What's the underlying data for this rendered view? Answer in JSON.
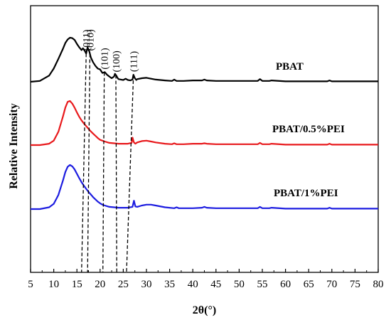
{
  "chart_data": {
    "type": "line",
    "title": "",
    "xlabel": "2θ(°)",
    "ylabel": "Relative Intensity",
    "xlim": [
      5,
      80
    ],
    "x_ticks": [
      5,
      10,
      15,
      20,
      25,
      30,
      35,
      40,
      45,
      50,
      55,
      60,
      65,
      70,
      75,
      80
    ],
    "y_ticks_visible": false,
    "grid": false,
    "legend": "inline labels at right of each curve",
    "series": [
      {
        "name": "PBAT",
        "color": "#000000",
        "offset": 2.0,
        "x": [
          5,
          7,
          9,
          10,
          11,
          12,
          12.5,
          13,
          13.5,
          14,
          14.5,
          15,
          15.5,
          16,
          16.3,
          16.7,
          17,
          17.3,
          17.7,
          18,
          18.5,
          19,
          19.5,
          20,
          20.5,
          21,
          21.5,
          22,
          22.5,
          23,
          23.2,
          23.5,
          23.8,
          24,
          24.5,
          25,
          25.5,
          26,
          26.5,
          27,
          27.2,
          27.5,
          27.8,
          28,
          29,
          30,
          31,
          32,
          34,
          35.5,
          36,
          36.5,
          38,
          40,
          42,
          42.5,
          43,
          45,
          50,
          54,
          54.5,
          55,
          56.5,
          57,
          60,
          65,
          69,
          69.5,
          70,
          75,
          80
        ],
        "y": [
          0.0,
          0.02,
          0.14,
          0.3,
          0.52,
          0.75,
          0.88,
          0.96,
          1.0,
          0.99,
          0.95,
          0.86,
          0.78,
          0.72,
          0.76,
          0.7,
          0.64,
          0.78,
          0.68,
          0.55,
          0.44,
          0.36,
          0.3,
          0.28,
          0.2,
          0.22,
          0.16,
          0.12,
          0.08,
          0.12,
          0.18,
          0.14,
          0.08,
          0.06,
          0.05,
          0.04,
          0.07,
          0.04,
          0.03,
          0.05,
          0.16,
          0.08,
          0.04,
          0.06,
          0.08,
          0.09,
          0.07,
          0.05,
          0.03,
          0.02,
          0.05,
          0.02,
          0.02,
          0.03,
          0.03,
          0.05,
          0.03,
          0.02,
          0.02,
          0.02,
          0.06,
          0.02,
          0.02,
          0.03,
          0.01,
          0.01,
          0.01,
          0.03,
          0.01,
          0.01,
          0.01
        ]
      },
      {
        "name": "PBAT/0.5%PEI",
        "color": "#e8191c",
        "offset": 1.0,
        "x": [
          5,
          7,
          9,
          10,
          11,
          12,
          12.5,
          13,
          13.5,
          14,
          14.5,
          15,
          15.5,
          16,
          16.5,
          17,
          17.5,
          18,
          18.5,
          19,
          19.5,
          20,
          20.5,
          21,
          22,
          23,
          24,
          25,
          26,
          26.8,
          27,
          27.3,
          27.6,
          28,
          29,
          30,
          31,
          32,
          34,
          35.5,
          36,
          36.5,
          38,
          40,
          42,
          42.5,
          43,
          45,
          50,
          54,
          54.5,
          55,
          56.5,
          57,
          60,
          65,
          69,
          69.5,
          70,
          75,
          80
        ],
        "y": [
          0.0,
          0.0,
          0.03,
          0.1,
          0.3,
          0.65,
          0.85,
          0.98,
          1.0,
          0.94,
          0.85,
          0.74,
          0.64,
          0.56,
          0.49,
          0.43,
          0.37,
          0.31,
          0.26,
          0.21,
          0.16,
          0.12,
          0.1,
          0.08,
          0.05,
          0.04,
          0.03,
          0.03,
          0.03,
          0.05,
          0.17,
          0.06,
          0.03,
          0.06,
          0.09,
          0.1,
          0.08,
          0.06,
          0.03,
          0.02,
          0.04,
          0.02,
          0.02,
          0.03,
          0.03,
          0.04,
          0.03,
          0.02,
          0.02,
          0.02,
          0.05,
          0.02,
          0.02,
          0.03,
          0.01,
          0.01,
          0.01,
          0.03,
          0.01,
          0.01,
          0.01
        ]
      },
      {
        "name": "PBAT/1%PEI",
        "color": "#1c1ce0",
        "offset": 0.0,
        "x": [
          5,
          7,
          9,
          10,
          11,
          12,
          12.5,
          13,
          13.5,
          14,
          14.5,
          15,
          15.5,
          16,
          16.5,
          17,
          17.5,
          18,
          18.5,
          19,
          19.5,
          20,
          20.5,
          21,
          22,
          23,
          24,
          25,
          26,
          27,
          27.3,
          27.6,
          28,
          29,
          30,
          31,
          32,
          34,
          36,
          36.5,
          37,
          40,
          42,
          42.5,
          43,
          45,
          50,
          54,
          54.5,
          55,
          56.5,
          57,
          60,
          65,
          69,
          69.5,
          70,
          75,
          80
        ],
        "y": [
          0.0,
          0.0,
          0.04,
          0.12,
          0.32,
          0.65,
          0.84,
          0.96,
          1.0,
          0.97,
          0.9,
          0.8,
          0.7,
          0.61,
          0.53,
          0.46,
          0.39,
          0.33,
          0.27,
          0.22,
          0.17,
          0.13,
          0.1,
          0.08,
          0.05,
          0.04,
          0.03,
          0.03,
          0.03,
          0.05,
          0.19,
          0.06,
          0.05,
          0.08,
          0.1,
          0.1,
          0.08,
          0.04,
          0.02,
          0.04,
          0.02,
          0.02,
          0.03,
          0.05,
          0.03,
          0.02,
          0.02,
          0.02,
          0.05,
          0.02,
          0.02,
          0.03,
          0.01,
          0.01,
          0.01,
          0.03,
          0.01,
          0.01,
          0.01
        ]
      }
    ],
    "peaks": [
      {
        "label": "(011)",
        "x_top": 17.0,
        "x_bottom": 16.0
      },
      {
        "label": "(010)",
        "x_top": 17.8,
        "x_bottom": 17.3
      },
      {
        "label": "(101)",
        "x_top": 20.9,
        "x_bottom": 20.6
      },
      {
        "label": "(100)",
        "x_top": 23.4,
        "x_bottom": 23.6
      },
      {
        "label": "(111)",
        "x_top": 27.2,
        "x_bottom": 25.7
      }
    ]
  }
}
